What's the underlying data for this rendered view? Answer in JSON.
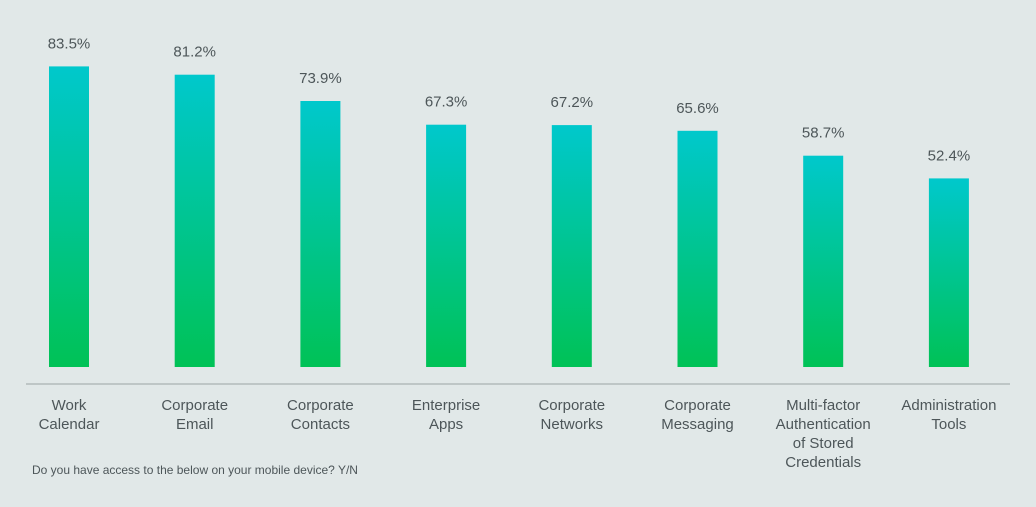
{
  "chart_data": {
    "type": "bar",
    "categories": [
      [
        "Work",
        "Calendar"
      ],
      [
        "Corporate",
        "Email"
      ],
      [
        "Corporate",
        "Contacts"
      ],
      [
        "Enterprise",
        "Apps"
      ],
      [
        "Corporate",
        "Networks"
      ],
      [
        "Corporate",
        "Messaging"
      ],
      [
        "Multi-factor",
        "Authentication",
        "of Stored",
        "Credentials"
      ],
      [
        "Administration",
        "Tools"
      ]
    ],
    "values": [
      83.5,
      81.2,
      73.9,
      67.3,
      67.2,
      65.6,
      58.7,
      52.4
    ],
    "value_labels": [
      "83.5%",
      "81.2%",
      "73.9%",
      "67.3%",
      "67.2%",
      "65.6%",
      "58.7%",
      "52.4%"
    ],
    "unit": "%",
    "ylim": [
      0,
      100
    ],
    "grid": false,
    "colors": {
      "bar_top": "#00c8cc",
      "bar_bottom": "#00c256",
      "axis_line": "#9aa3a5",
      "text": "#4d5659",
      "background": "#e1e8e8"
    }
  },
  "caption": "Do you have access to the below on your mobile device? Y/N"
}
